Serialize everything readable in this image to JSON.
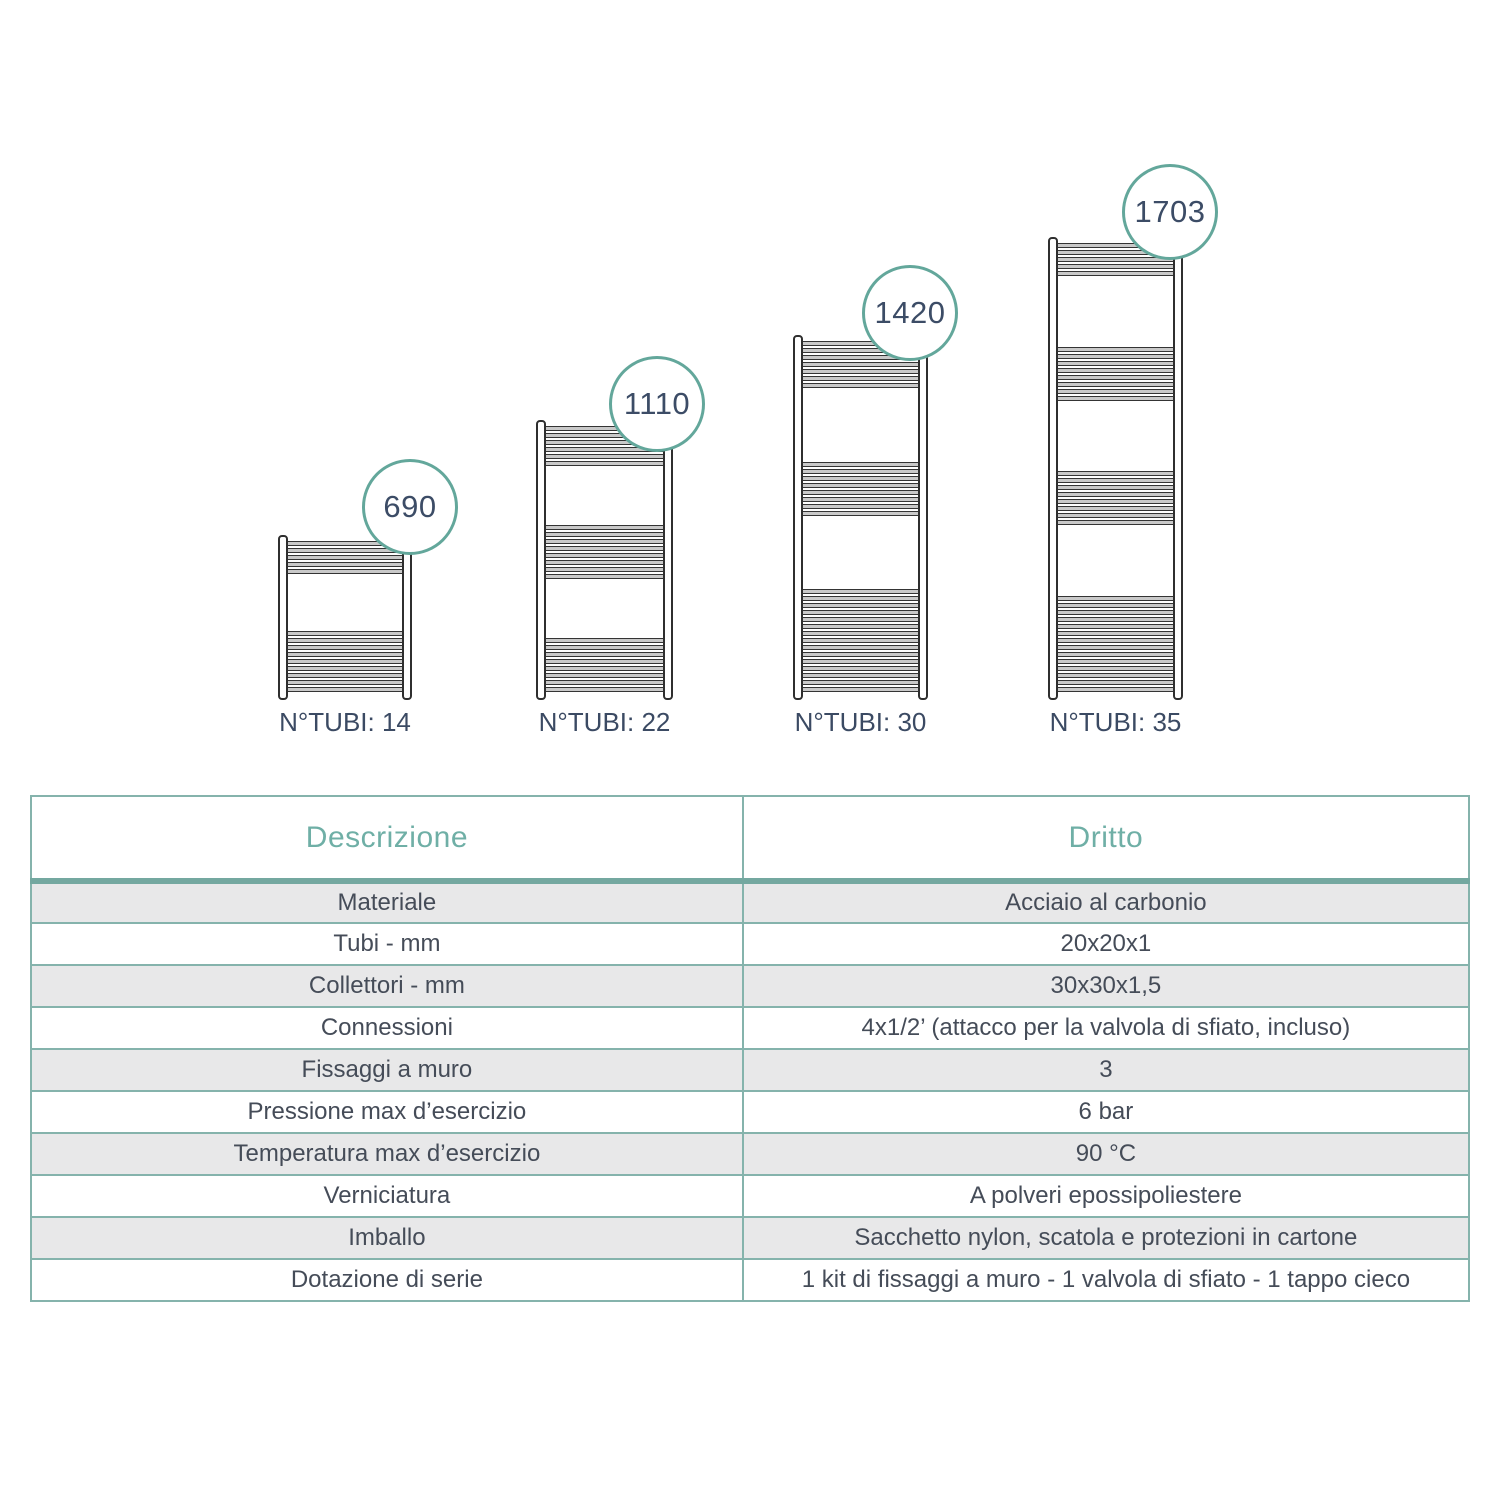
{
  "colors": {
    "accent_teal": "#6FAFA6",
    "badge_border_teal": "#63A79B",
    "table_border_teal": "#85B3AC",
    "navy_text": "#3B4A63",
    "body_text": "#454C58",
    "row_stripe_gray": "#E8E8E9",
    "tube_fill": "#C9C9C9",
    "line_dark": "#2F2F2F"
  },
  "diagram": {
    "radiators": [
      {
        "height_mm": "690",
        "tubi_label": "N°TUBI: 14",
        "tube_groups": [
          5,
          9
        ]
      },
      {
        "height_mm": "1110",
        "tubi_label": "N°TUBI: 22",
        "tube_groups": [
          6,
          8,
          8
        ]
      },
      {
        "height_mm": "1420",
        "tubi_label": "N°TUBI: 30",
        "tube_groups": [
          7,
          8,
          15
        ]
      },
      {
        "height_mm": "1703",
        "tubi_label": "N°TUBI: 35",
        "tube_groups": [
          5,
          8,
          8,
          14
        ]
      }
    ]
  },
  "table": {
    "header": {
      "col1": "Descrizione",
      "col2": "Dritto"
    },
    "rows": [
      [
        "Materiale",
        "Acciaio al carbonio"
      ],
      [
        "Tubi - mm",
        "20x20x1"
      ],
      [
        "Collettori - mm",
        "30x30x1,5"
      ],
      [
        "Connessioni",
        "4x1/2’ (attacco per la valvola di sfiato, incluso)"
      ],
      [
        "Fissaggi a muro",
        "3"
      ],
      [
        "Pressione max d’esercizio",
        "6 bar"
      ],
      [
        "Temperatura max d’esercizio",
        "90 °C"
      ],
      [
        "Verniciatura",
        "A polveri epossipoliestere"
      ],
      [
        "Imballo",
        "Sacchetto nylon, scatola e protezioni in cartone"
      ],
      [
        "Dotazione di serie",
        "1 kit di fissaggi a muro - 1 valvola di sfiato - 1 tappo cieco"
      ]
    ]
  }
}
